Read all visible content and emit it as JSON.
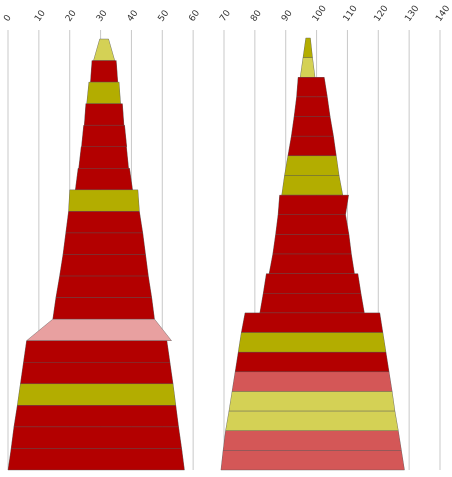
{
  "chart_data": {
    "type": "bar",
    "xlim": [
      0,
      140
    ],
    "ticks": [
      0,
      10,
      20,
      30,
      40,
      50,
      60,
      70,
      80,
      90,
      100,
      110,
      120,
      130,
      140
    ],
    "grid": true,
    "colors": {
      "dark_red": "#b30000",
      "olive": "#b3ad00",
      "light_olive": "#d4d155",
      "salmon": "#d45757",
      "pink": "#e8a0a0"
    },
    "stacks": [
      {
        "name": "",
        "segments": [
          {
            "low": 27.7,
            "high": 34.6,
            "left_low": 27.7,
            "left_high": 29.7,
            "right_low": 34.6,
            "right_high": 32.6,
            "color": "light_olive"
          },
          {
            "low": 26.7,
            "high": 35.6,
            "left_low": 26.7,
            "left_high": 27.2,
            "right_low": 35.6,
            "right_high": 35.1,
            "color": "dark_red"
          },
          {
            "low": 25.5,
            "high": 36.5,
            "left_low": 25.5,
            "left_high": 26.2,
            "right_low": 36.5,
            "right_high": 36.0,
            "color": "olive"
          },
          {
            "low": 24.7,
            "high": 37.6,
            "left_low": 24.7,
            "left_high": 25.2,
            "right_low": 37.6,
            "right_high": 37.1,
            "color": "dark_red"
          },
          {
            "low": 23.8,
            "high": 38.5,
            "left_low": 23.8,
            "left_high": 24.5,
            "right_low": 38.5,
            "right_high": 37.8,
            "color": "dark_red"
          },
          {
            "low": 22.9,
            "high": 39.1,
            "left_low": 22.9,
            "left_high": 23.7,
            "right_low": 39.1,
            "right_high": 38.4,
            "color": "dark_red"
          },
          {
            "low": 21.8,
            "high": 40.4,
            "left_low": 21.8,
            "left_high": 22.7,
            "right_low": 40.4,
            "right_high": 39.4,
            "color": "dark_red"
          },
          {
            "low": 19.6,
            "high": 42.6,
            "left_low": 19.6,
            "left_high": 20.0,
            "right_low": 42.6,
            "right_high": 42.1,
            "color": "olive"
          },
          {
            "low": 18.7,
            "high": 43.7,
            "left_low": 18.7,
            "left_high": 19.6,
            "right_low": 43.7,
            "right_high": 42.6,
            "color": "dark_red"
          },
          {
            "low": 17.8,
            "high": 44.6,
            "left_low": 17.8,
            "left_high": 18.7,
            "right_low": 44.6,
            "right_high": 43.7,
            "color": "dark_red"
          },
          {
            "low": 16.7,
            "high": 45.5,
            "left_low": 16.7,
            "left_high": 17.8,
            "right_low": 45.5,
            "right_high": 44.6,
            "color": "dark_red"
          },
          {
            "low": 15.5,
            "high": 46.6,
            "left_low": 15.5,
            "left_high": 16.7,
            "right_low": 46.6,
            "right_high": 45.5,
            "color": "dark_red"
          },
          {
            "low": 14.5,
            "high": 47.5,
            "left_low": 14.5,
            "left_high": 15.5,
            "right_low": 47.5,
            "right_high": 46.6,
            "color": "dark_red"
          },
          {
            "low": 6.0,
            "high": 53.0,
            "left_low": 6.0,
            "left_high": 14.5,
            "right_low": 53.0,
            "right_high": 47.5,
            "color": "pink"
          },
          {
            "low": 5.0,
            "high": 52.5,
            "left_low": 5.0,
            "left_high": 6.0,
            "right_low": 52.5,
            "right_high": 51.5,
            "color": "dark_red"
          },
          {
            "low": 4.0,
            "high": 53.5,
            "left_low": 4.0,
            "left_high": 5.0,
            "right_low": 53.5,
            "right_high": 52.5,
            "color": "dark_red"
          },
          {
            "low": 3.0,
            "high": 54.4,
            "left_low": 3.0,
            "left_high": 4.0,
            "right_low": 54.4,
            "right_high": 53.5,
            "color": "olive"
          },
          {
            "low": 1.9,
            "high": 55.3,
            "left_low": 1.9,
            "left_high": 3.0,
            "right_low": 55.3,
            "right_high": 54.4,
            "color": "dark_red"
          },
          {
            "low": 1.0,
            "high": 56.3,
            "left_low": 1.0,
            "left_high": 1.9,
            "right_low": 56.3,
            "right_high": 55.3,
            "color": "dark_red"
          },
          {
            "low": 0.0,
            "high": 57.2,
            "left_low": 0.0,
            "left_high": 1.0,
            "right_low": 57.2,
            "right_high": 56.3,
            "color": "dark_red"
          }
        ]
      },
      {
        "name": "",
        "segments": [
          {
            "low": 95.6,
            "high": 98.7,
            "left_low": 95.6,
            "left_high": 96.5,
            "right_low": 98.7,
            "right_high": 98.0,
            "color": "olive"
          },
          {
            "low": 94.7,
            "high": 99.5,
            "left_low": 94.7,
            "left_high": 95.6,
            "right_low": 99.5,
            "right_high": 98.7,
            "color": "light_olive"
          },
          {
            "low": 93.5,
            "high": 103.5,
            "left_low": 93.5,
            "left_high": 94.0,
            "right_low": 103.5,
            "right_high": 102.5,
            "color": "dark_red"
          },
          {
            "low": 92.7,
            "high": 104.4,
            "left_low": 92.7,
            "left_high": 93.5,
            "right_low": 104.4,
            "right_high": 103.5,
            "color": "dark_red"
          },
          {
            "low": 91.8,
            "high": 105.5,
            "left_low": 91.8,
            "left_high": 92.7,
            "right_low": 105.5,
            "right_high": 104.4,
            "color": "dark_red"
          },
          {
            "low": 90.7,
            "high": 106.4,
            "left_low": 90.7,
            "left_high": 91.8,
            "right_low": 106.4,
            "right_high": 105.5,
            "color": "dark_red"
          },
          {
            "low": 89.6,
            "high": 107.3,
            "left_low": 89.6,
            "left_high": 90.7,
            "right_low": 107.3,
            "right_high": 106.4,
            "color": "olive"
          },
          {
            "low": 88.7,
            "high": 108.5,
            "left_low": 88.7,
            "left_high": 89.6,
            "right_low": 108.5,
            "right_high": 107.3,
            "color": "olive"
          },
          {
            "low": 87.5,
            "high": 109.4,
            "left_low": 87.5,
            "left_high": 88.0,
            "right_low": 109.4,
            "right_high": 110.4,
            "color": "dark_red"
          },
          {
            "low": 86.7,
            "high": 110.5,
            "left_low": 86.7,
            "left_high": 87.5,
            "right_low": 110.5,
            "right_high": 109.4,
            "color": "dark_red"
          },
          {
            "low": 85.8,
            "high": 111.3,
            "left_low": 85.8,
            "left_high": 86.7,
            "right_low": 111.3,
            "right_high": 110.5,
            "color": "dark_red"
          },
          {
            "low": 84.6,
            "high": 112.3,
            "left_low": 84.6,
            "left_high": 85.8,
            "right_low": 112.3,
            "right_high": 111.3,
            "color": "dark_red"
          },
          {
            "low": 82.7,
            "high": 114.4,
            "left_low": 82.7,
            "left_high": 83.7,
            "right_low": 114.4,
            "right_high": 113.4,
            "color": "dark_red"
          },
          {
            "low": 81.6,
            "high": 115.5,
            "left_low": 81.6,
            "left_high": 82.7,
            "right_low": 115.5,
            "right_high": 114.4,
            "color": "dark_red"
          },
          {
            "low": 75.6,
            "high": 121.5,
            "left_low": 75.6,
            "left_high": 76.8,
            "right_low": 121.5,
            "right_high": 120.5,
            "color": "dark_red"
          },
          {
            "low": 74.6,
            "high": 122.5,
            "left_low": 74.6,
            "left_high": 75.6,
            "right_low": 122.5,
            "right_high": 121.5,
            "color": "olive"
          },
          {
            "low": 73.6,
            "high": 123.5,
            "left_low": 73.6,
            "left_high": 74.6,
            "right_low": 123.5,
            "right_high": 122.5,
            "color": "dark_red"
          },
          {
            "low": 72.6,
            "high": 124.5,
            "left_low": 72.6,
            "left_high": 73.6,
            "right_low": 124.5,
            "right_high": 123.5,
            "color": "salmon"
          },
          {
            "low": 71.6,
            "high": 125.4,
            "left_low": 71.6,
            "left_high": 72.6,
            "right_low": 125.4,
            "right_high": 124.5,
            "color": "light_olive"
          },
          {
            "low": 70.5,
            "high": 126.5,
            "left_low": 70.5,
            "left_high": 71.6,
            "right_low": 126.5,
            "right_high": 125.4,
            "color": "light_olive"
          },
          {
            "low": 69.7,
            "high": 127.5,
            "left_low": 69.7,
            "left_high": 70.5,
            "right_low": 127.5,
            "right_high": 126.5,
            "color": "salmon"
          },
          {
            "low": 69.0,
            "high": 128.5,
            "left_low": 69.0,
            "left_high": 69.7,
            "right_low": 128.5,
            "right_high": 127.5,
            "color": "salmon"
          }
        ]
      }
    ]
  }
}
